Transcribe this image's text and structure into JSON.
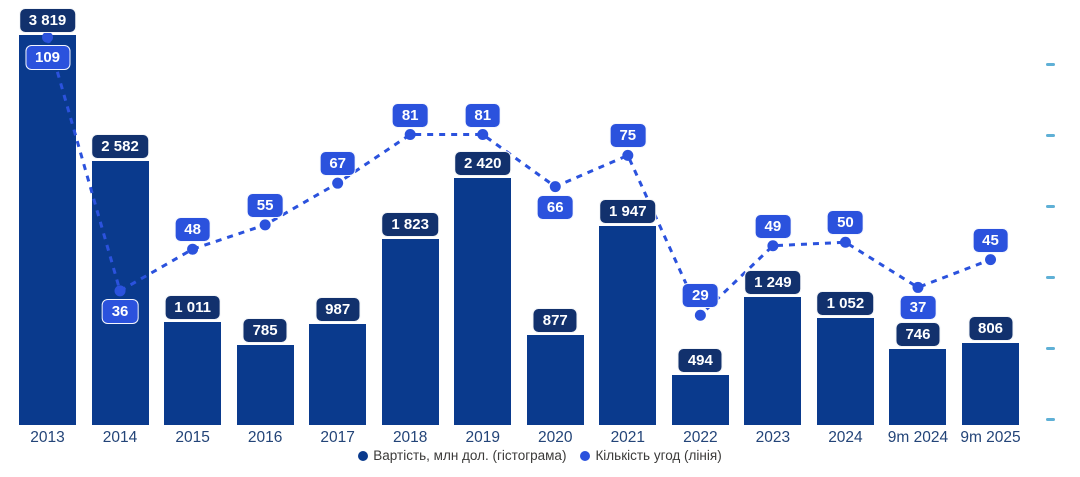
{
  "chart_data": {
    "type": "combo-bar-line",
    "categories": [
      "2013",
      "2014",
      "2015",
      "2016",
      "2017",
      "2018",
      "2019",
      "2020",
      "2021",
      "2022",
      "2023",
      "2024",
      "9m 2024",
      "9m 2025"
    ],
    "series": [
      {
        "name": "Вартість, млн дол. (гістограма)",
        "type": "bar",
        "values": [
          3819,
          2582,
          1011,
          785,
          987,
          1823,
          2420,
          877,
          1947,
          494,
          1249,
          1052,
          746,
          806
        ],
        "labels": [
          "3 819",
          "2 582",
          "1 011",
          "785",
          "987",
          "1 823",
          "2 420",
          "877",
          "1 947",
          "494",
          "1 249",
          "1 052",
          "746",
          "806"
        ],
        "color": "#0a3a8d",
        "label_bg": "#12316d"
      },
      {
        "name": "Кількість угод (лінія)",
        "type": "line",
        "values": [
          109,
          36,
          48,
          55,
          67,
          81,
          81,
          66,
          75,
          29,
          49,
          50,
          37,
          45
        ],
        "labels": [
          "109",
          "36",
          "48",
          "55",
          "67",
          "81",
          "81",
          "66",
          "75",
          "29",
          "49",
          "50",
          "37",
          "45"
        ],
        "color": "#2b52dd",
        "label_bg": "#2b52dd",
        "line_style": "dashed",
        "label_below_indices": [
          0,
          1,
          7,
          12
        ]
      }
    ],
    "left_axis": {
      "labels_visible": false,
      "max": 3819
    },
    "right_axis": {
      "labels_visible": false,
      "tick_count": 6,
      "tick_color": "#5fb0d6"
    },
    "grid": false,
    "legend_position": "bottom-center",
    "title": ""
  }
}
